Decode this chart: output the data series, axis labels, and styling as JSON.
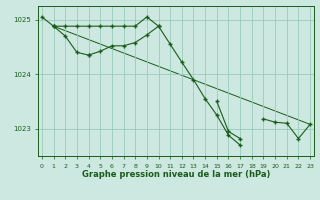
{
  "title": "Graphe pression niveau de la mer (hPa)",
  "background_color": "#cce8e0",
  "grid_color": "#99ccbb",
  "line_color": "#1a5c1a",
  "x_hours": [
    0,
    1,
    2,
    3,
    4,
    5,
    6,
    7,
    8,
    9,
    10,
    11,
    12,
    13,
    14,
    15,
    16,
    17,
    18,
    19,
    20,
    21,
    22,
    23
  ],
  "line1": [
    1025.05,
    1024.88,
    1024.88,
    1024.88,
    1024.88,
    1024.88,
    1024.88,
    1024.88,
    1024.88,
    1025.05,
    1024.88,
    null,
    null,
    null,
    null,
    null,
    null,
    null,
    null,
    null,
    null,
    null,
    null,
    null
  ],
  "line2": [
    null,
    1024.88,
    1024.7,
    1024.4,
    1024.35,
    1024.42,
    1024.52,
    1024.52,
    1024.58,
    1024.72,
    1024.88,
    1024.55,
    1024.22,
    1023.9,
    1023.55,
    1023.25,
    1022.88,
    1022.7,
    null,
    null,
    null,
    null,
    null,
    null
  ],
  "line3": [
    null,
    1024.88,
    null,
    null,
    1024.35,
    null,
    null,
    null,
    null,
    null,
    null,
    null,
    null,
    null,
    null,
    1023.5,
    1022.95,
    1022.82,
    null,
    1023.18,
    1023.12,
    1023.1,
    1022.82,
    1023.08
  ],
  "line_straight": [
    [
      1,
      1024.88
    ],
    [
      23,
      1023.08
    ]
  ],
  "ylim": [
    1022.5,
    1025.25
  ],
  "yticks": [
    1023,
    1024,
    1025
  ],
  "xlim": [
    -0.3,
    23.3
  ],
  "xticks": [
    0,
    1,
    2,
    3,
    4,
    5,
    6,
    7,
    8,
    9,
    10,
    11,
    12,
    13,
    14,
    15,
    16,
    17,
    18,
    19,
    20,
    21,
    22,
    23
  ]
}
